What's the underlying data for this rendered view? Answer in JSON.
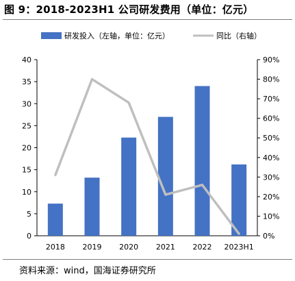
{
  "title": "图 9：2018-2023H1 公司研发费用（单位：亿元）",
  "source": "资料来源：wind，国海证券研究所",
  "chart_data": {
    "type": "bar",
    "categories": [
      "2018",
      "2019",
      "2020",
      "2021",
      "2022",
      "2023H1"
    ],
    "series": [
      {
        "name": "研发投入（左轴，单位：亿元）",
        "type": "bar",
        "axis": "left",
        "color": "#4472c4",
        "values": [
          7.3,
          13.2,
          22.3,
          27.0,
          34.0,
          16.2
        ]
      },
      {
        "name": "同比（右轴）",
        "type": "line",
        "axis": "right",
        "color": "#bfbfbf",
        "values": [
          0.31,
          0.8,
          0.68,
          0.21,
          0.26,
          0.01
        ]
      }
    ],
    "ylim_left": [
      0,
      40
    ],
    "yticks_left": [
      "0",
      "5",
      "10",
      "15",
      "20",
      "25",
      "30",
      "35",
      "40"
    ],
    "ylim_right": [
      0,
      0.9
    ],
    "yticks_right": [
      "0%",
      "10%",
      "20%",
      "30%",
      "40%",
      "50%",
      "60%",
      "70%",
      "80%",
      "90%"
    ],
    "grid": false,
    "legend": "top"
  }
}
